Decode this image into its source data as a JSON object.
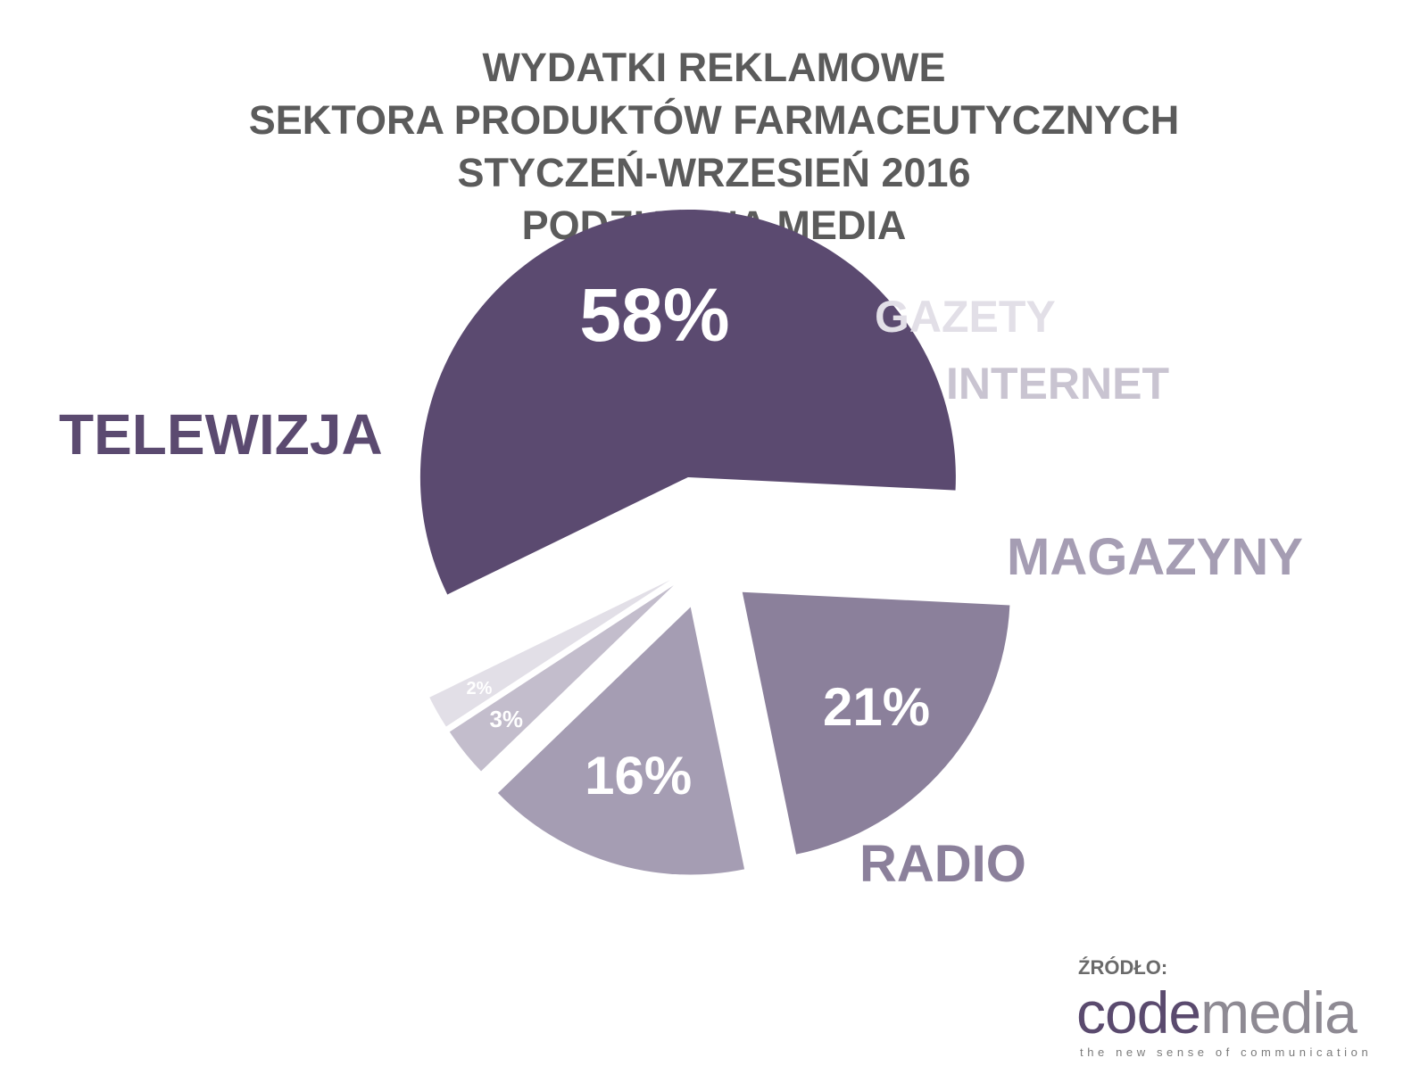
{
  "chart_data": {
    "type": "pie",
    "title": [
      "WYDATKI REKLAMOWE",
      "SEKTORA PRODUKTÓW FARMACEUTYCZNYCH",
      "STYCZEŃ-WRZESIEŃ 2016",
      "PODZIAŁ NA MEDIA"
    ],
    "unit": "%",
    "slices": [
      {
        "label": "TELEWIZJA",
        "value": 58,
        "value_label": "58%",
        "color": "#5b4a70",
        "label_color": "#5b4a70"
      },
      {
        "label": "RADIO",
        "value": 21,
        "value_label": "21%",
        "color": "#8b809b",
        "label_color": "#8b809b"
      },
      {
        "label": "MAGAZYNY",
        "value": 16,
        "value_label": "16%",
        "color": "#a59db3",
        "label_color": "#a59db3"
      },
      {
        "label": "INTERNET",
        "value": 3,
        "value_label": "3%",
        "color": "#c3bdcc",
        "label_color": "#c9c4d1"
      },
      {
        "label": "GAZETY",
        "value": 2,
        "value_label": "2%",
        "color": "#e2dfe7",
        "label_color": "#e2dfe7"
      }
    ],
    "style": "exploded"
  },
  "source": {
    "label": "ŹRÓDŁO:",
    "logo_part1": "code",
    "logo_part2": "media",
    "tagline": "the new sense of communication"
  }
}
